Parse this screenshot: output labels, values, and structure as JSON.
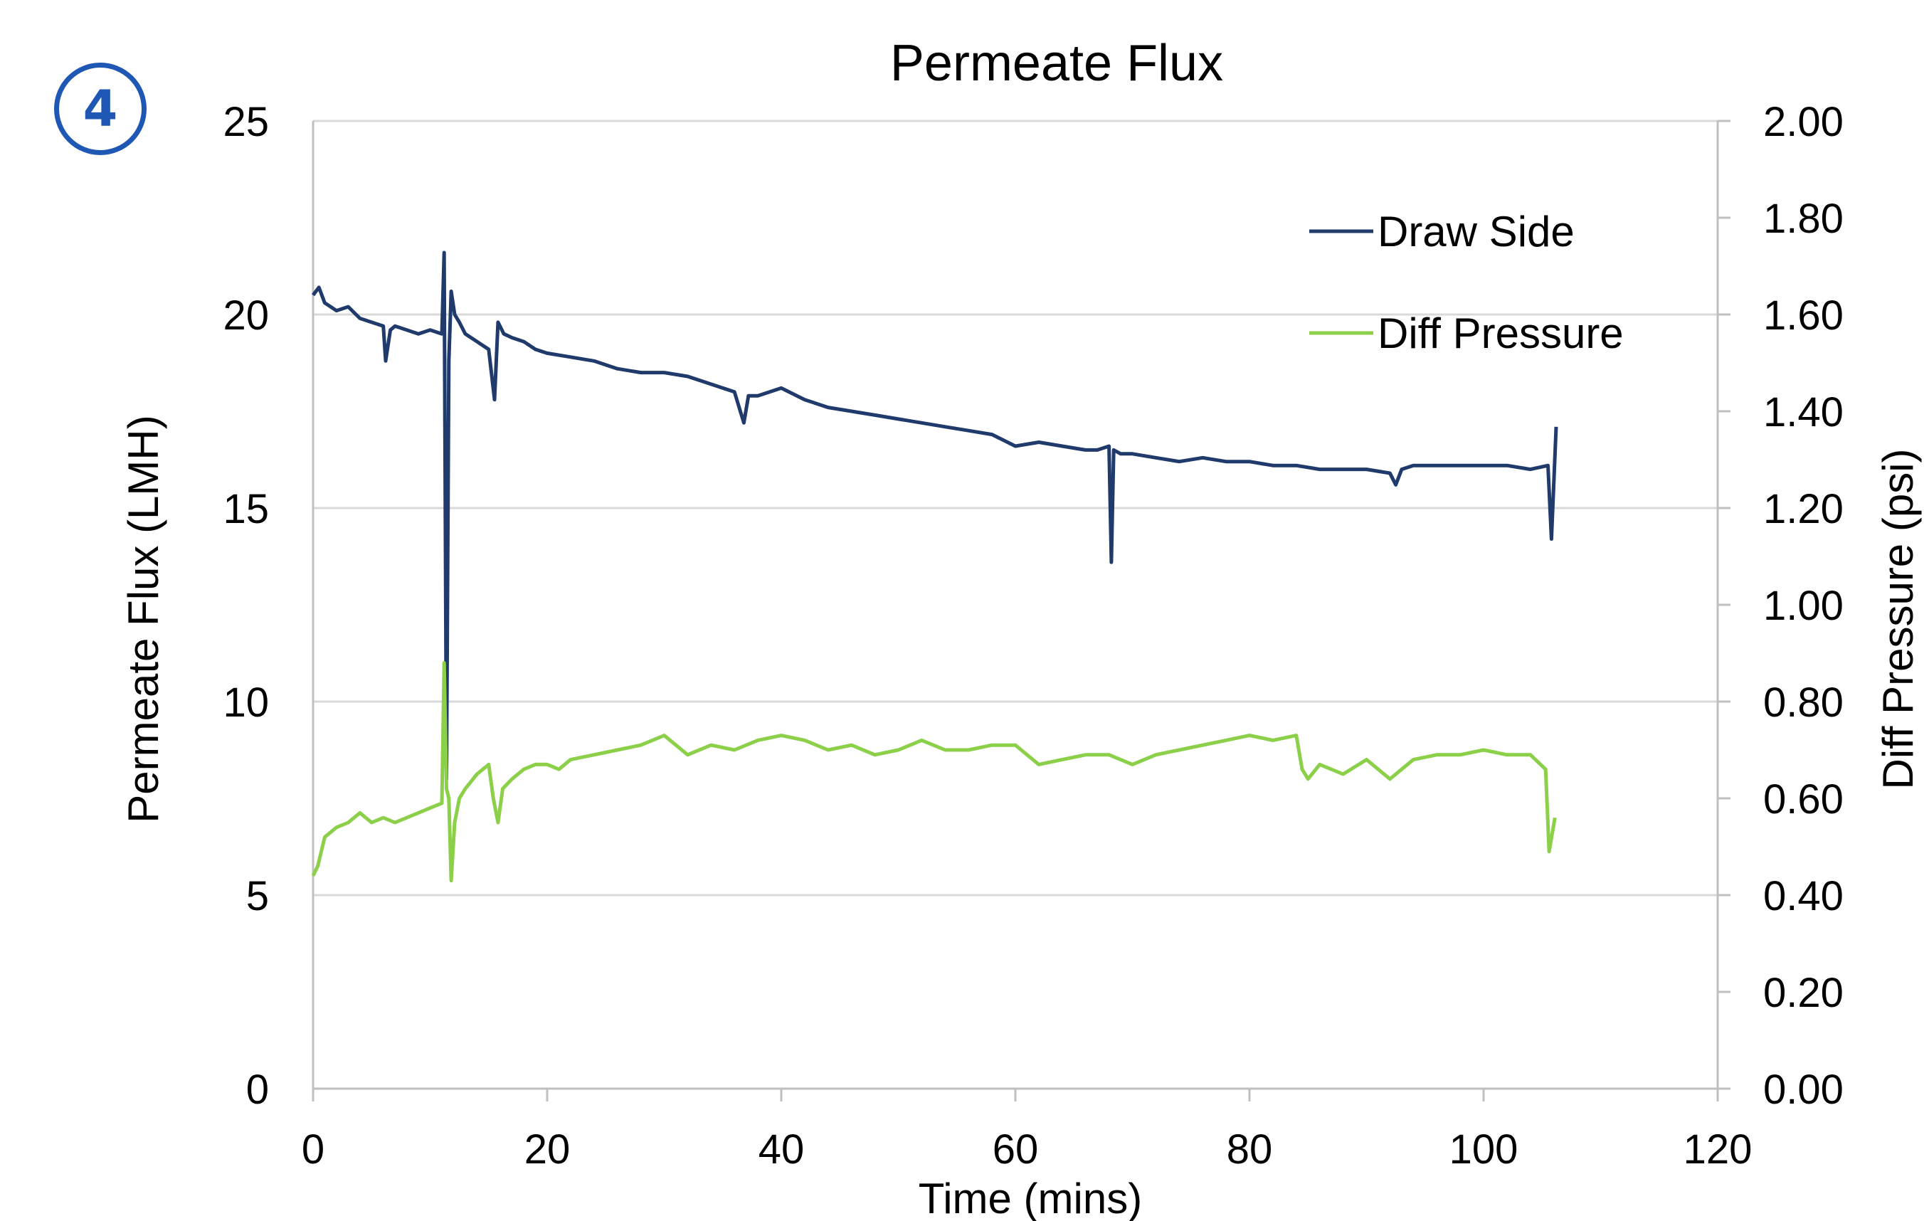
{
  "badge": "4",
  "colors": {
    "draw_side": "#1f3a6b",
    "diff_pressure": "#8cd04a",
    "grid": "#d9d9d9",
    "axis": "#bfbfbf",
    "badge": "#1f57b5"
  },
  "chart_data": {
    "type": "line",
    "title": "Permeate Flux",
    "xlabel": "Time (mins)",
    "ylabel": "Permeate Flux (LMH)",
    "y2label": "Diff Pressure (psi)",
    "xlim": [
      0,
      120
    ],
    "ylim": [
      0,
      25
    ],
    "y2lim": [
      0,
      2.0
    ],
    "xticks": [
      "0",
      "20",
      "40",
      "60",
      "80",
      "100",
      "120"
    ],
    "yticks": [
      "0",
      "5",
      "10",
      "15",
      "20",
      "25"
    ],
    "y2ticks": [
      "0.00",
      "0.20",
      "0.40",
      "0.60",
      "0.80",
      "1.00",
      "1.20",
      "1.40",
      "1.60",
      "1.80",
      "2.00"
    ],
    "grid": true,
    "legend_position": "top-right",
    "series": [
      {
        "name": "Draw Side",
        "axis": "left",
        "x": [
          0,
          0.5,
          1,
          2,
          3,
          4,
          5,
          6,
          6.2,
          6.6,
          7,
          8,
          9,
          10,
          11,
          11.2,
          11.4,
          11.6,
          11.8,
          12.1,
          12.5,
          13,
          14,
          15,
          15.5,
          15.8,
          16.3,
          17,
          18,
          19,
          20,
          22,
          24,
          26,
          28,
          30,
          32,
          34,
          36,
          36.8,
          37.2,
          38,
          40,
          42,
          44,
          46,
          48,
          50,
          52,
          54,
          56,
          58,
          60,
          62,
          64,
          66,
          67,
          68,
          68.2,
          68.4,
          69,
          70,
          72,
          74,
          76,
          78,
          80,
          82,
          84,
          86,
          88,
          90,
          92,
          92.5,
          93,
          94,
          96,
          98,
          100,
          102,
          104,
          105.5,
          105.8,
          106.2
        ],
        "values": [
          20.5,
          20.7,
          20.3,
          20.1,
          20.2,
          19.9,
          19.8,
          19.7,
          18.8,
          19.6,
          19.7,
          19.6,
          19.5,
          19.6,
          19.5,
          21.6,
          8.0,
          18.8,
          20.6,
          20.0,
          19.8,
          19.5,
          19.3,
          19.1,
          17.8,
          19.8,
          19.5,
          19.4,
          19.3,
          19.1,
          19.0,
          18.9,
          18.8,
          18.6,
          18.5,
          18.5,
          18.4,
          18.2,
          18.0,
          17.2,
          17.9,
          17.9,
          18.1,
          17.8,
          17.6,
          17.5,
          17.4,
          17.3,
          17.2,
          17.1,
          17.0,
          16.9,
          16.6,
          16.7,
          16.6,
          16.5,
          16.5,
          16.6,
          13.6,
          16.5,
          16.4,
          16.4,
          16.3,
          16.2,
          16.3,
          16.2,
          16.2,
          16.1,
          16.1,
          16.0,
          16.0,
          16.0,
          15.9,
          15.6,
          16.0,
          16.1,
          16.1,
          16.1,
          16.1,
          16.1,
          16.0,
          16.1,
          14.2,
          17.1
        ]
      },
      {
        "name": "Diff Pressure",
        "axis": "right",
        "x": [
          0,
          0.4,
          1,
          2,
          3,
          4,
          5,
          6,
          7,
          8,
          9,
          10,
          11,
          11.2,
          11.4,
          11.6,
          11.8,
          12.1,
          12.5,
          13,
          14,
          15,
          15.4,
          15.8,
          16.2,
          17,
          18,
          19,
          20,
          21,
          22,
          24,
          26,
          28,
          30,
          32,
          34,
          36,
          38,
          40,
          42,
          44,
          46,
          48,
          50,
          52,
          54,
          56,
          58,
          60,
          62,
          64,
          66,
          68,
          70,
          72,
          74,
          76,
          78,
          80,
          82,
          84,
          84.5,
          85,
          86,
          88,
          90,
          92,
          94,
          96,
          98,
          100,
          102,
          104,
          105.3,
          105.6,
          106.1
        ],
        "values": [
          0.44,
          0.46,
          0.52,
          0.54,
          0.55,
          0.57,
          0.55,
          0.56,
          0.55,
          0.56,
          0.57,
          0.58,
          0.59,
          0.88,
          0.62,
          0.6,
          0.43,
          0.55,
          0.6,
          0.62,
          0.65,
          0.67,
          0.6,
          0.55,
          0.62,
          0.64,
          0.66,
          0.67,
          0.67,
          0.66,
          0.68,
          0.69,
          0.7,
          0.71,
          0.73,
          0.69,
          0.71,
          0.7,
          0.72,
          0.73,
          0.72,
          0.7,
          0.71,
          0.69,
          0.7,
          0.72,
          0.7,
          0.7,
          0.71,
          0.71,
          0.67,
          0.68,
          0.69,
          0.69,
          0.67,
          0.69,
          0.7,
          0.71,
          0.72,
          0.73,
          0.72,
          0.73,
          0.66,
          0.64,
          0.67,
          0.65,
          0.68,
          0.64,
          0.68,
          0.69,
          0.69,
          0.7,
          0.69,
          0.69,
          0.66,
          0.49,
          0.56
        ]
      }
    ]
  }
}
